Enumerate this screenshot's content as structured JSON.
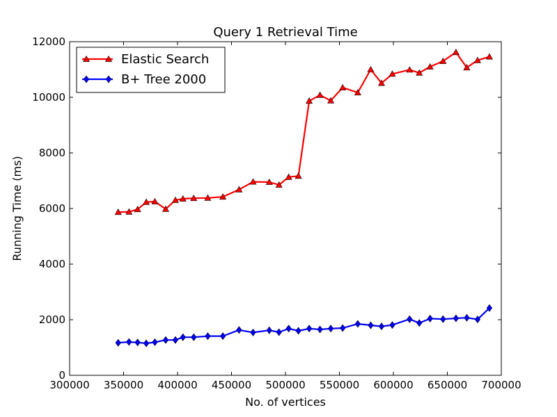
{
  "chart_data": {
    "type": "line",
    "title": "Query 1 Retrieval Time",
    "xlabel": "No. of vertices",
    "ylabel": "Running Time (ms)",
    "xlim": [
      300000,
      700000
    ],
    "ylim": [
      0,
      12000
    ],
    "xticks": [
      300000,
      350000,
      400000,
      450000,
      500000,
      550000,
      600000,
      650000,
      700000
    ],
    "yticks": [
      0,
      2000,
      4000,
      6000,
      8000,
      10000,
      12000
    ],
    "x_tick_labels": [
      "300000",
      "350000",
      "400000",
      "450000",
      "500000",
      "550000",
      "600000",
      "650000",
      "700000"
    ],
    "y_tick_labels": [
      "0",
      "2000",
      "4000",
      "6000",
      "8000",
      "10000",
      "12000"
    ],
    "grid": false,
    "legend_position": "top-left",
    "series": [
      {
        "name": "Elastic Search",
        "color": "#ff0000",
        "marker": "triangle",
        "x": [
          345000,
          355000,
          363000,
          371000,
          379000,
          389000,
          398000,
          405000,
          415000,
          428000,
          442000,
          457000,
          470000,
          485000,
          494000,
          503000,
          512000,
          522000,
          532000,
          542000,
          553000,
          567000,
          579000,
          589000,
          599000,
          615000,
          624000,
          634000,
          646000,
          658000,
          668000,
          678000,
          689000
        ],
        "y": [
          5870,
          5880,
          5970,
          6230,
          6250,
          5980,
          6300,
          6350,
          6370,
          6380,
          6420,
          6680,
          6960,
          6950,
          6850,
          7130,
          7170,
          9870,
          10080,
          9880,
          10350,
          10170,
          11000,
          10510,
          10840,
          10990,
          10880,
          11100,
          11300,
          11620,
          11070,
          11330,
          11460
        ]
      },
      {
        "name": "B+ Tree 2000",
        "color": "#0000ff",
        "marker": "diamond",
        "x": [
          345000,
          355000,
          363000,
          371000,
          379000,
          389000,
          398000,
          405000,
          415000,
          428000,
          442000,
          457000,
          470000,
          485000,
          494000,
          503000,
          512000,
          522000,
          532000,
          542000,
          553000,
          567000,
          579000,
          589000,
          599000,
          615000,
          624000,
          634000,
          646000,
          658000,
          668000,
          678000,
          689000
        ],
        "y": [
          1170,
          1200,
          1180,
          1150,
          1190,
          1270,
          1270,
          1370,
          1370,
          1410,
          1410,
          1630,
          1540,
          1620,
          1550,
          1680,
          1600,
          1680,
          1650,
          1680,
          1700,
          1850,
          1800,
          1760,
          1810,
          2020,
          1880,
          2040,
          2020,
          2050,
          2070,
          2010,
          2420
        ]
      }
    ]
  }
}
